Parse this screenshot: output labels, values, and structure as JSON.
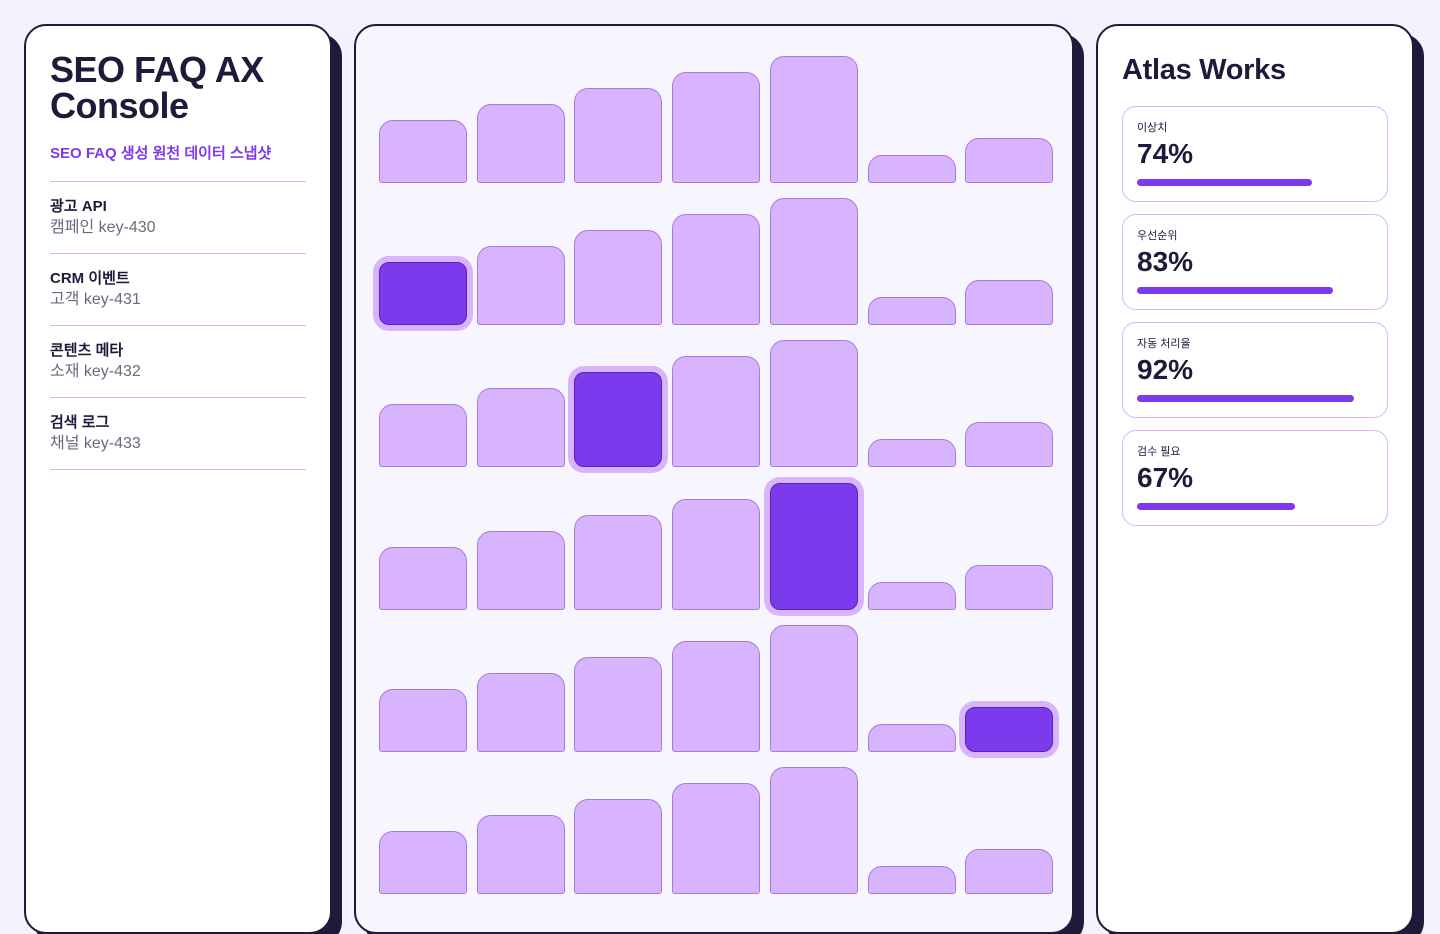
{
  "app": {
    "title": "SEO FAQ AX Console",
    "subtitle": "SEO FAQ 생성 원천 데이터 스냅샷"
  },
  "sources": [
    {
      "name": "광고 API",
      "key": "캠페인 key-430"
    },
    {
      "name": "CRM 이벤트",
      "key": "고객 key-431"
    },
    {
      "name": "콘텐츠 메타",
      "key": "소재 key-432"
    },
    {
      "name": "검색 로그",
      "key": "채널 key-433"
    }
  ],
  "matrix": {
    "column_levels": [
      0.46,
      0.58,
      0.7,
      0.82,
      0.94,
      0.2,
      0.33
    ],
    "selected": [
      [
        1,
        0
      ],
      [
        2,
        2
      ],
      [
        3,
        4
      ],
      [
        4,
        6
      ]
    ],
    "colors": {
      "cell": "#d8b4fe",
      "selected": "#7c3aed"
    }
  },
  "brand": "Atlas Works",
  "kpis": [
    {
      "label": "이상치",
      "value": "74%",
      "fill": 0.74
    },
    {
      "label": "우선순위",
      "value": "83%",
      "fill": 0.83
    },
    {
      "label": "자동 처리율",
      "value": "92%",
      "fill": 0.92
    },
    {
      "label": "검수 필요",
      "value": "67%",
      "fill": 0.67
    }
  ],
  "colors": {
    "accent": "#7c3aed",
    "ink": "#1e1b3a",
    "background": "#f4f2fe"
  }
}
